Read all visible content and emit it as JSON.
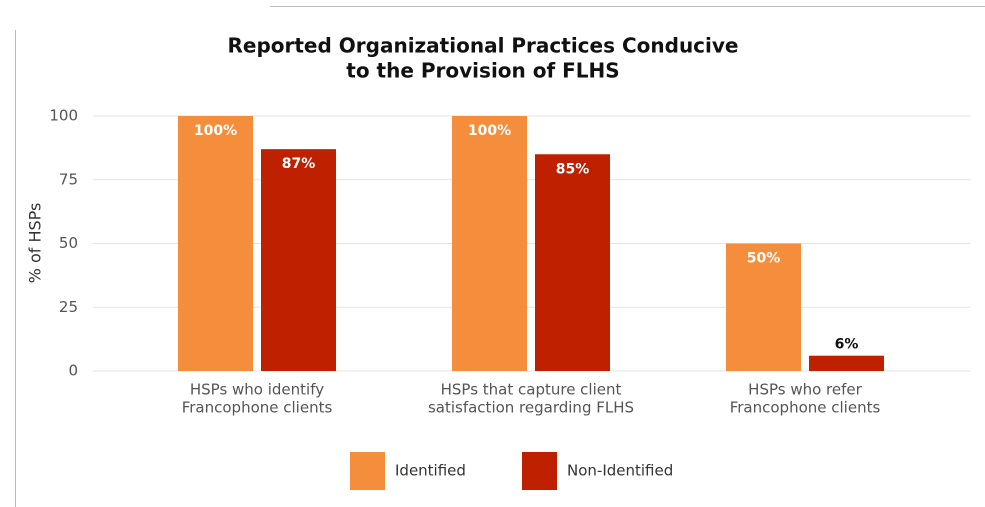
{
  "chart_data": {
    "type": "bar",
    "title": [
      "Reported Organizational Practices Conducive",
      "to the Provision of FLHS"
    ],
    "y_label": "% of HSPs",
    "categories": [
      [
        "HSPs who identify",
        "Francophone clients"
      ],
      [
        "HSPs that capture client",
        "satisfaction regarding FLHS"
      ],
      [
        "HSPs who refer",
        "Francophone clients"
      ]
    ],
    "series": [
      {
        "name": "Identified",
        "color": "#f58e3c",
        "values": [
          100,
          100,
          50
        ],
        "value_labels": [
          "100%",
          "100%",
          "50%"
        ]
      },
      {
        "name": "Non-Identified",
        "color": "#bf2000",
        "values": [
          87,
          85,
          6
        ],
        "value_labels": [
          "87%",
          "85%",
          "6%"
        ]
      }
    ],
    "ylim": [
      0,
      100
    ],
    "yticks": [
      0,
      25,
      50,
      75,
      100
    ],
    "grid": true,
    "legend": "bottom"
  }
}
